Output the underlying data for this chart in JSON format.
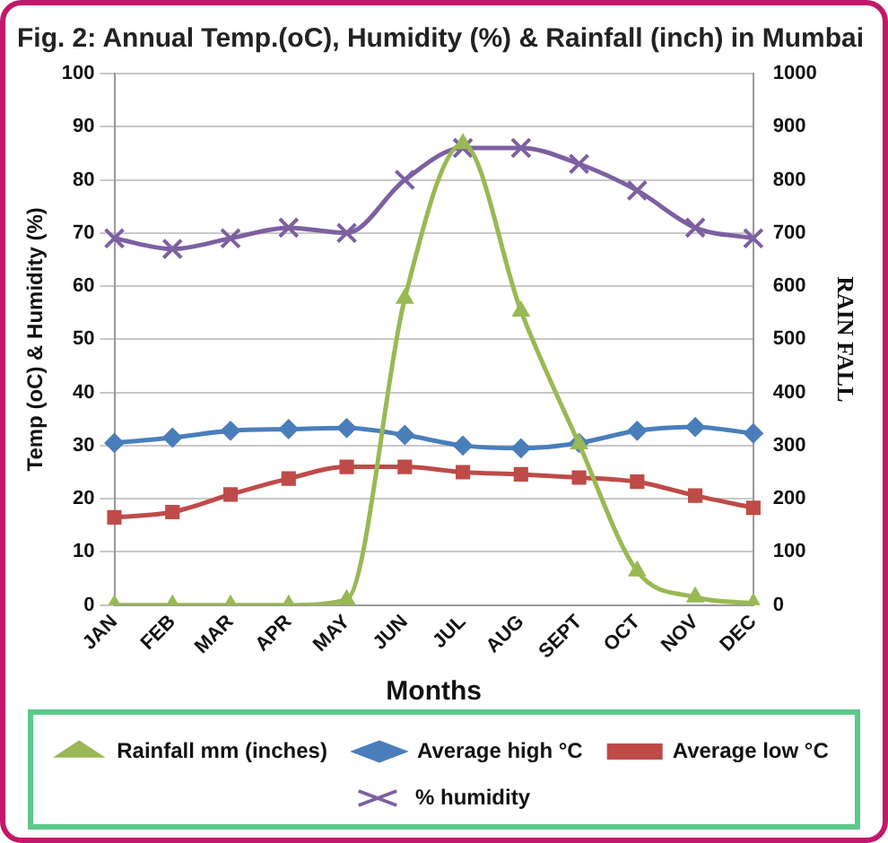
{
  "chart_data": {
    "type": "line",
    "title": "Fig. 2: Annual Temp.(oC), Humidity (%) & Rainfall (inch) in Mumbai",
    "xlabel": "Months",
    "ylabel": "Temp (oC) & Humidity (%)",
    "y2label": "RAIN FALL",
    "categories": [
      "JAN",
      "FEB",
      "MAR",
      "APR",
      "MAY",
      "JUN",
      "JUL",
      "AUG",
      "SEPT",
      "OCT",
      "NOV",
      "DEC"
    ],
    "series": [
      {
        "name": "Average high °C",
        "color": "#4a7ebb",
        "marker": "diamond",
        "values": [
          30.5,
          31.5,
          32.8,
          33.1,
          33.3,
          32,
          30,
          29.5,
          30.5,
          32.8,
          33.5,
          32.3
        ]
      },
      {
        "name": "Average low °C",
        "color": "#be4b48",
        "marker": "square",
        "values": [
          16.5,
          17.5,
          20.8,
          23.8,
          26,
          26,
          25,
          24.6,
          24,
          23.2,
          20.6,
          18.3
        ]
      },
      {
        "name": "% humidity",
        "color": "#7d60a0",
        "marker": "cross",
        "values": [
          69,
          67,
          69,
          71,
          70,
          80,
          86,
          86,
          83,
          78,
          71,
          69
        ]
      },
      {
        "name": "Rainfall mm (inches)",
        "color": "#98b954",
        "marker": "triangle",
        "axis": "y2",
        "values": [
          0,
          0,
          0,
          0,
          10,
          577,
          868,
          553,
          303,
          64,
          15,
          3
        ]
      }
    ],
    "ylim": [
      0,
      100
    ],
    "yticks": [
      0,
      10,
      20,
      30,
      40,
      50,
      60,
      70,
      80,
      90,
      100
    ],
    "y2lim": [
      0,
      1000
    ],
    "y2ticks": [
      0,
      100,
      200,
      300,
      400,
      500,
      600,
      700,
      800,
      900,
      1000
    ],
    "grid": "y",
    "legend": "bottom",
    "line_style": "solid"
  }
}
